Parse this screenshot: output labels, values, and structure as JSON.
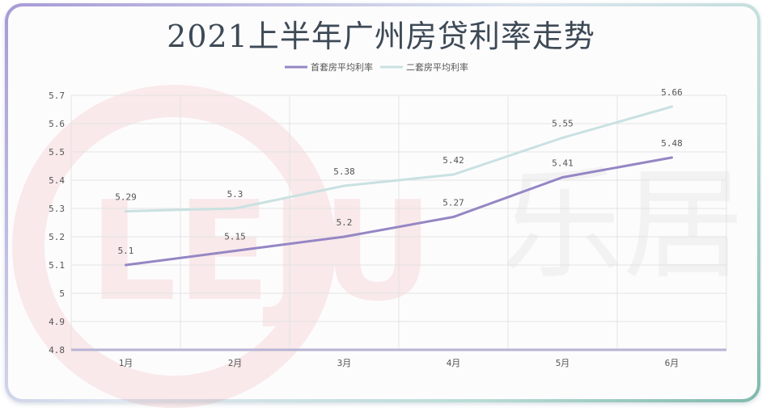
{
  "chart_data": {
    "type": "line",
    "title": "2021上半年广州房贷利率走势",
    "categories": [
      "1月",
      "2月",
      "3月",
      "4月",
      "5月",
      "6月"
    ],
    "series": [
      {
        "name": "首套房平均利率",
        "values": [
          5.1,
          5.15,
          5.2,
          5.27,
          5.41,
          5.48
        ],
        "color": "#9586c4"
      },
      {
        "name": "二套房平均利率",
        "values": [
          5.29,
          5.3,
          5.38,
          5.42,
          5.55,
          5.66
        ],
        "color": "#c9e1e1"
      }
    ],
    "ylim": [
      4.8,
      5.7
    ],
    "yticks": [
      "4.8",
      "4.9",
      "5",
      "5.1",
      "5.2",
      "5.3",
      "5.4",
      "5.5",
      "5.6",
      "5.7"
    ],
    "grid": true,
    "legend": "top-center",
    "xlabel": "",
    "ylabel": ""
  },
  "watermark": "LEJU 乐居"
}
